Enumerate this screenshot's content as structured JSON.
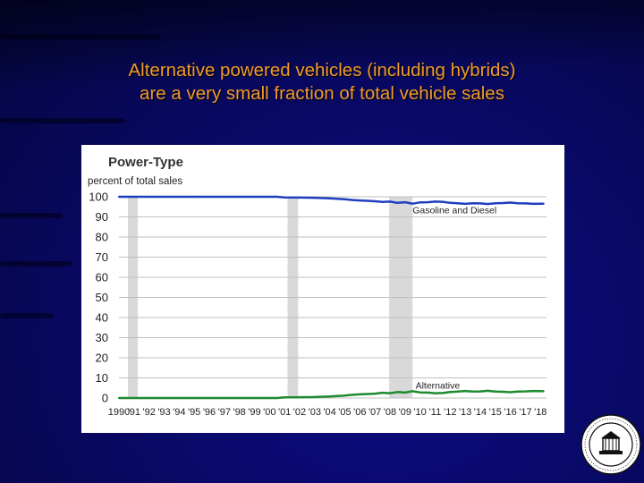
{
  "slide": {
    "title_line1": "Alternative powered vehicles (including hybrids)",
    "title_line2": "are a very small fraction of total vehicle sales"
  },
  "colors": {
    "title": "#f09a2a",
    "background": "#0a0a6e",
    "gasoline_series": "#1f3fbf",
    "alternative_series": "#1e8a2e",
    "recession_shading": "#d9d9d9"
  },
  "icons": [
    "seal-icon"
  ],
  "chart_data": {
    "type": "line",
    "title": "Power-Type",
    "ylabel": "percent of total sales",
    "ylim": [
      0,
      100
    ],
    "yticks": [
      0,
      10,
      20,
      30,
      40,
      50,
      60,
      70,
      80,
      90,
      100
    ],
    "xlim": [
      1990,
      2018.4
    ],
    "xtick_labels": [
      "1990",
      "'91",
      "'92",
      "'93",
      "'94",
      "'95",
      "'96",
      "'97",
      "'98",
      "'99",
      "'00",
      "'01",
      "'02",
      "'03",
      "'04",
      "'05",
      "'06",
      "'07",
      "'08",
      "'09",
      "'10",
      "'11",
      "'12",
      "'13",
      "'14",
      "'15",
      "'16",
      "'17",
      "'18"
    ],
    "grid": "horizontal",
    "recessions": [
      [
        1990.6,
        1991.25
      ],
      [
        2001.2,
        2001.9
      ],
      [
        2007.95,
        2009.5
      ]
    ],
    "series": [
      {
        "name": "Gasoline and Diesel",
        "label_at": [
          2009.5,
          93.5
        ],
        "x": [
          1990,
          1995,
          2000.5,
          2001,
          2002,
          2003,
          2004,
          2004.5,
          2005,
          2005.5,
          2006,
          2006.5,
          2007,
          2007.5,
          2008,
          2008.5,
          2009,
          2009.5,
          2010,
          2010.5,
          2011,
          2011.5,
          2012,
          2012.5,
          2013,
          2013.5,
          2014,
          2014.5,
          2015,
          2015.5,
          2016,
          2016.5,
          2017,
          2017.5,
          2018.2
        ],
        "values": [
          100,
          100,
          100,
          99.7,
          99.6,
          99.5,
          99.2,
          99.0,
          98.8,
          98.4,
          98.2,
          98.0,
          97.8,
          97.4,
          97.6,
          97.0,
          97.3,
          96.6,
          97.2,
          97.3,
          97.6,
          97.5,
          97.0,
          96.8,
          96.5,
          96.8,
          96.7,
          96.4,
          96.8,
          96.9,
          97.1,
          96.8,
          96.7,
          96.5,
          96.6
        ]
      },
      {
        "name": "Alternative",
        "label_at": [
          2009.7,
          6.5
        ],
        "x": [
          1990,
          1995,
          2000.5,
          2001,
          2002,
          2003,
          2004,
          2004.5,
          2005,
          2005.5,
          2006,
          2006.5,
          2007,
          2007.5,
          2008,
          2008.5,
          2009,
          2009.5,
          2010,
          2010.5,
          2011,
          2011.5,
          2012,
          2012.5,
          2013,
          2013.5,
          2014,
          2014.5,
          2015,
          2015.5,
          2016,
          2016.5,
          2017,
          2017.5,
          2018.2
        ],
        "values": [
          0,
          0,
          0,
          0.3,
          0.4,
          0.5,
          0.8,
          1.0,
          1.2,
          1.6,
          1.8,
          2.0,
          2.2,
          2.6,
          2.4,
          3.0,
          2.7,
          3.4,
          2.8,
          2.7,
          2.4,
          2.5,
          3.0,
          3.2,
          3.5,
          3.2,
          3.3,
          3.6,
          3.2,
          3.1,
          2.9,
          3.2,
          3.3,
          3.5,
          3.4
        ]
      }
    ]
  }
}
